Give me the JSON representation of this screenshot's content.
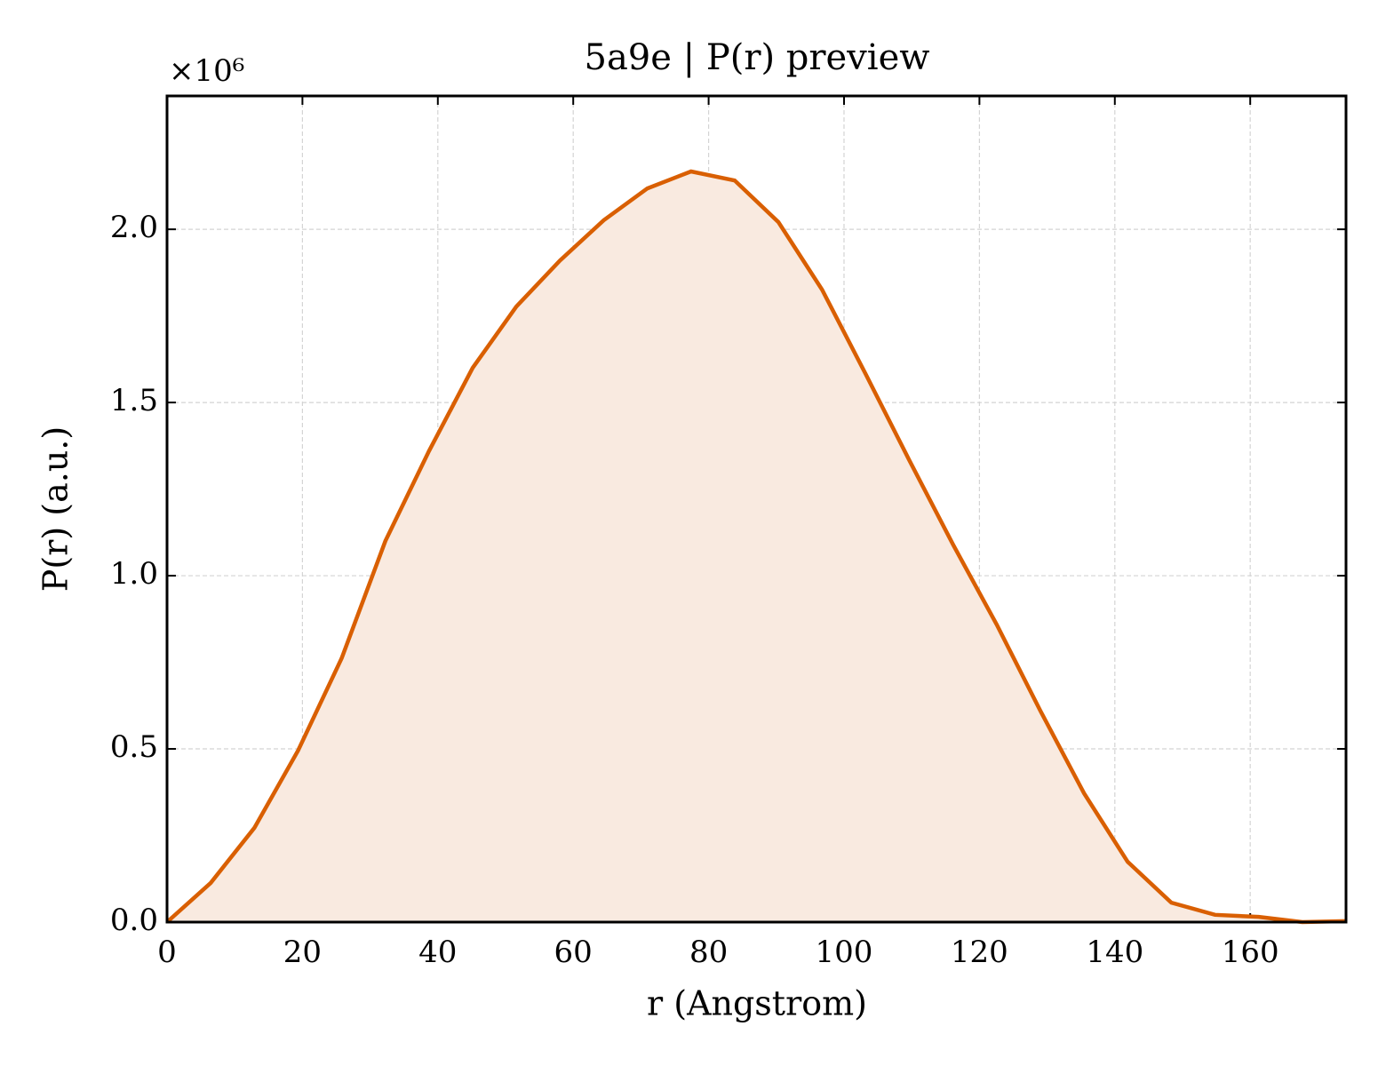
{
  "chart_data": {
    "type": "line",
    "title": "5a9e | P(r) preview",
    "x_label": "r (Angstrom)",
    "y_label": "P(r) (a.u.)",
    "y_offset_label": "×10⁶",
    "x": [
      0,
      6.45,
      12.9,
      19.35,
      25.8,
      32.25,
      38.7,
      45.15,
      51.6,
      58.05,
      64.5,
      70.95,
      77.4,
      83.85,
      90.3,
      96.75,
      103.2,
      109.65,
      116.1,
      122.55,
      129,
      135.45,
      141.9,
      148.35,
      154.8,
      161.25,
      167.7,
      174.15
    ],
    "series": [
      {
        "name": "P(r)",
        "color": "#d95f02",
        "fill_color": "#f9eae0",
        "values": [
          0,
          0.113,
          0.272,
          0.495,
          0.762,
          1.1,
          1.36,
          1.6,
          1.777,
          1.91,
          2.026,
          2.118,
          2.167,
          2.141,
          2.021,
          1.826,
          1.582,
          1.333,
          1.09,
          0.859,
          0.61,
          0.372,
          0.174,
          0.056,
          0.021,
          0.015,
          0,
          0.003
        ]
      }
    ],
    "xlim": [
      0,
      174.15
    ],
    "ylim": [
      0,
      2.385
    ],
    "xticks": [
      0,
      20,
      40,
      60,
      80,
      100,
      120,
      140,
      160
    ],
    "yticks": [
      {
        "value": 0,
        "label": "0.0"
      },
      0.5,
      {
        "value": 1,
        "label": "1.0"
      },
      1.5,
      {
        "value": 2,
        "label": "2.0"
      }
    ],
    "grid": true
  }
}
